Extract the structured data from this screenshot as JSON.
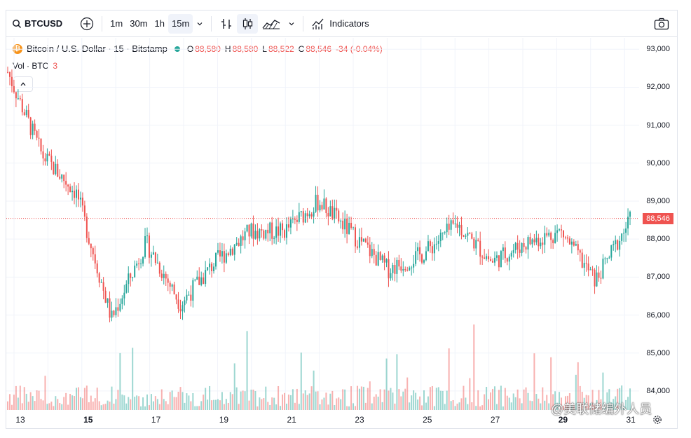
{
  "toolbar": {
    "symbol": "BTCUSD",
    "add_icon": "plus-circle-icon",
    "intervals": [
      "1m",
      "30m",
      "1h",
      "15m"
    ],
    "active_interval": "15m",
    "indicators_label": "Indicators",
    "icons": [
      "bar-chart-icon",
      "candles-icon",
      "area-chart-icon",
      "chevron-down-icon",
      "indicators-icon",
      "camera-icon"
    ]
  },
  "legend": {
    "title": "Bitcoin / U.S. Dollar · 15 · Bitstamp",
    "o_label": "O",
    "o": "88,580",
    "h_label": "H",
    "h": "88,580",
    "l_label": "L",
    "l": "88,522",
    "c_label": "C",
    "c": "88,546",
    "change": "-34 (-0.04%)"
  },
  "volume": {
    "label": "Vol · BTC",
    "value": "3"
  },
  "price_axis": {
    "ticks": [
      "93,000",
      "92,000",
      "91,000",
      "90,000",
      "89,000",
      "88,000",
      "87,000",
      "86,000",
      "85,000",
      "84,000"
    ],
    "current": "88,546"
  },
  "time_axis": {
    "ticks": [
      "13",
      "15",
      "17",
      "19",
      "21",
      "23",
      "25",
      "27",
      "29",
      "31"
    ],
    "bold": [
      "15",
      "29"
    ]
  },
  "watermark": "@美联储编外人员",
  "colors": {
    "up": "#26a69a",
    "down": "#ef5350",
    "grid": "#f0f3fa"
  },
  "chart_data": {
    "type": "line",
    "title": "Bitcoin / U.S. Dollar · 15 · Bitstamp",
    "ylim": [
      83500,
      93300
    ],
    "x": [
      "13",
      "14",
      "15",
      "16",
      "17",
      "18",
      "19",
      "20",
      "21",
      "22",
      "23",
      "24",
      "25",
      "26",
      "27",
      "28",
      "29",
      "30",
      "31"
    ],
    "series": [
      {
        "name": "Bitcoin / U.S. Dollar",
        "values": [
          92400,
          90200,
          89200,
          85900,
          87900,
          86300,
          87400,
          88200,
          88200,
          89000,
          88100,
          87200,
          87600,
          88400,
          87400,
          87900,
          88200,
          86900,
          88500
        ]
      }
    ],
    "grid": true
  }
}
